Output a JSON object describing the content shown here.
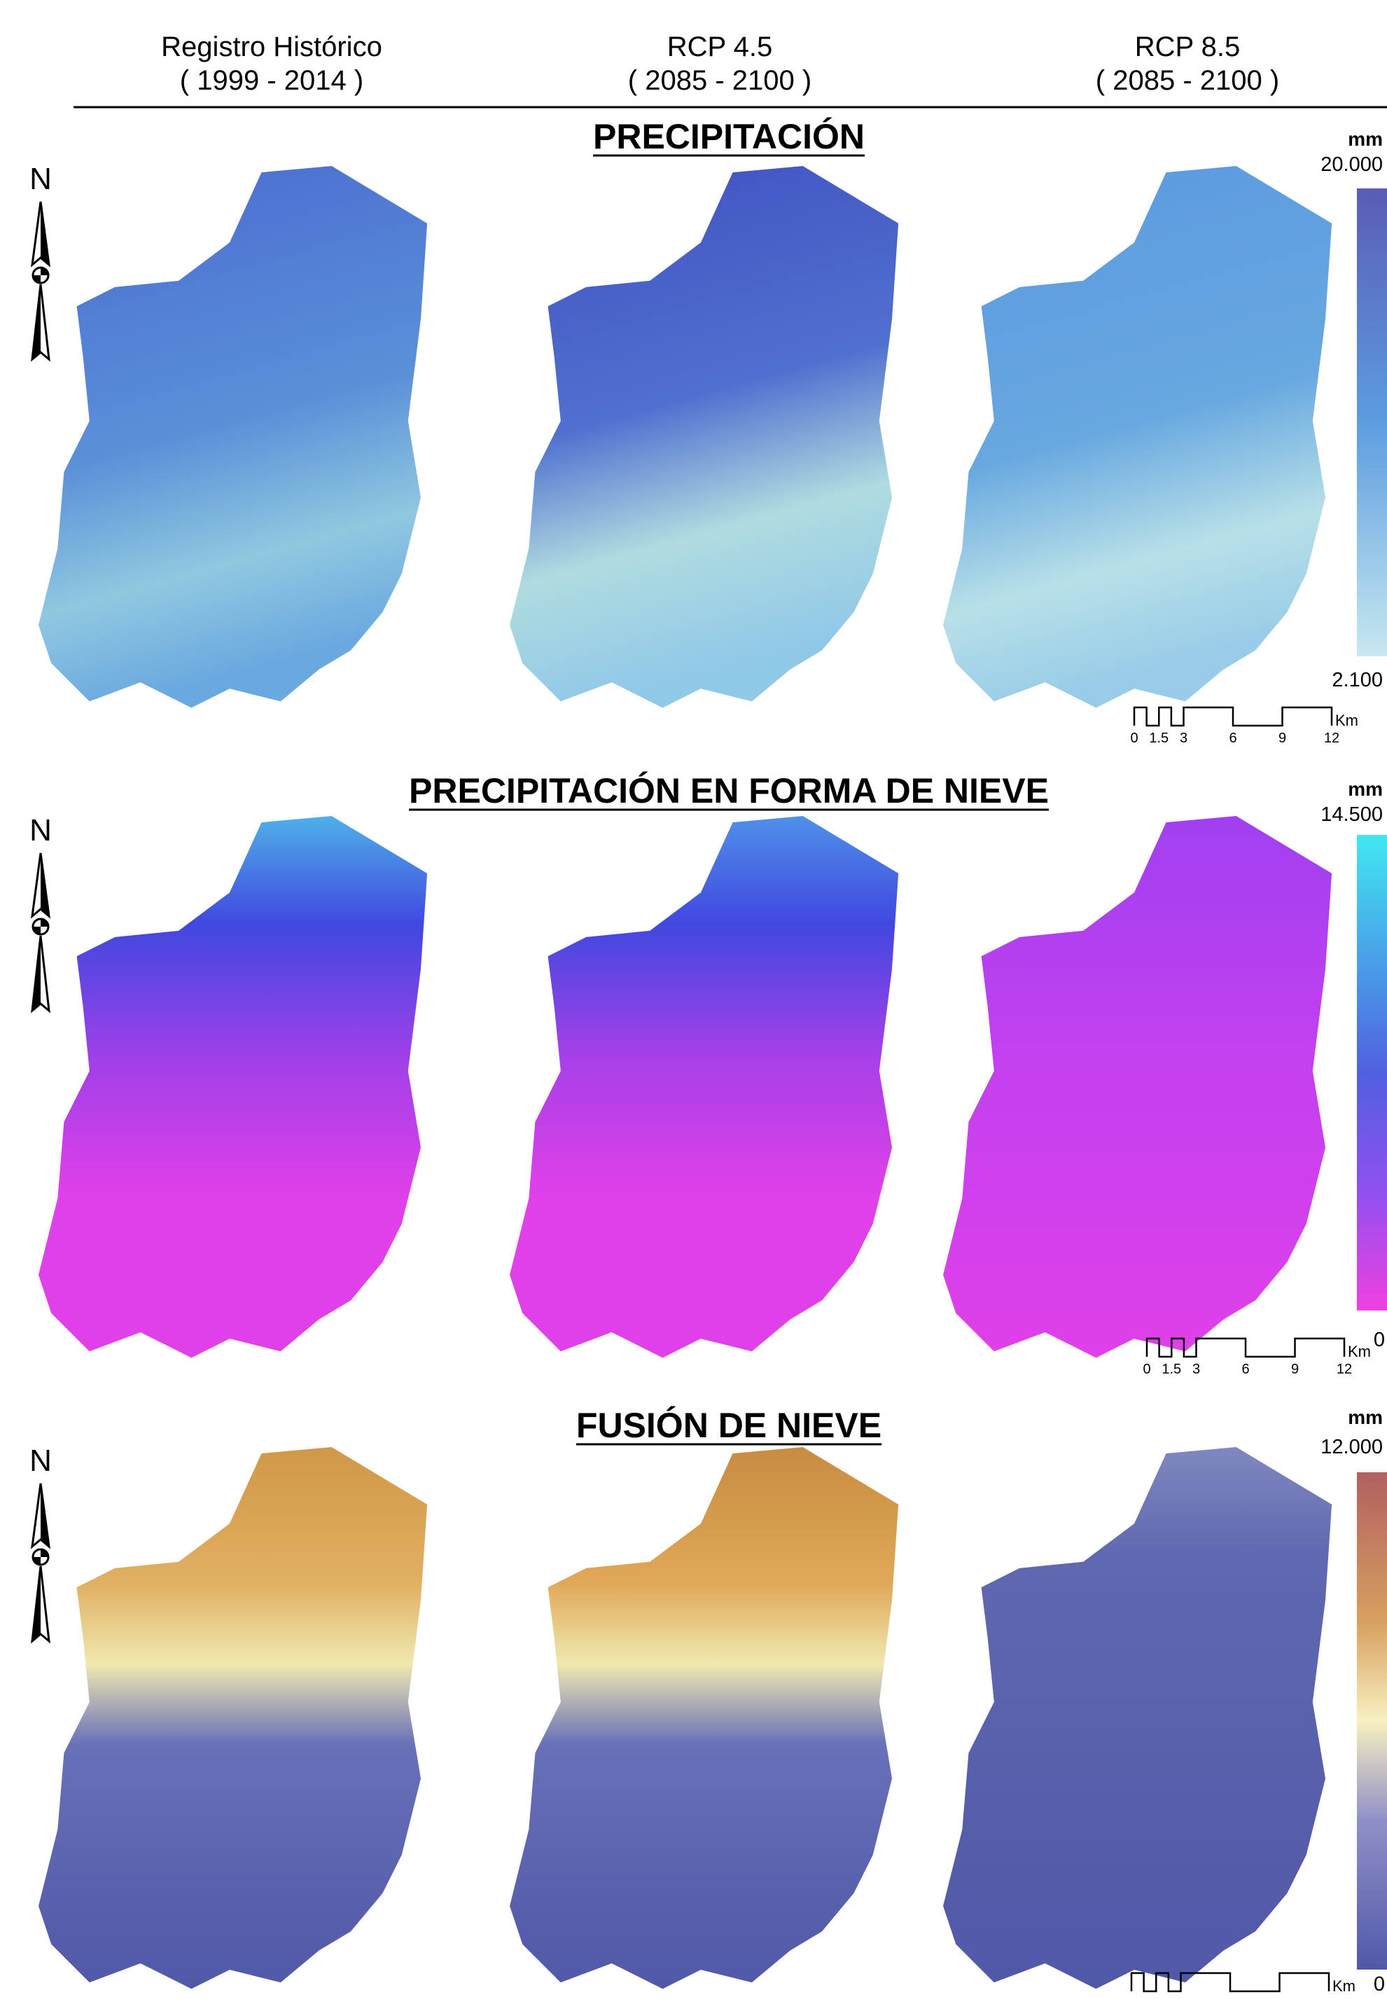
{
  "headers": [
    {
      "title": "Registro Histórico",
      "period": "( 1999 - 2014 )"
    },
    {
      "title": "RCP 4.5",
      "period": "( 2085 - 2100 )"
    },
    {
      "title": "RCP 8.5",
      "period": "( 2085 - 2100 )"
    }
  ],
  "sections": [
    {
      "title": "PRECIPITACIÓN",
      "north": "N",
      "legend": {
        "unit": "mm",
        "max": "20.000",
        "min": "2.100"
      },
      "scale_labels": [
        "0",
        "1.5",
        "3",
        "6",
        "9",
        "12"
      ],
      "scale_unit": "Km"
    },
    {
      "title": "PRECIPITACIÓN EN FORMA DE NIEVE",
      "north": "N",
      "legend": {
        "unit": "mm",
        "max": "14.500",
        "min": "0"
      },
      "scale_labels": [
        "0",
        "1.5",
        "3",
        "6",
        "9",
        "12"
      ],
      "scale_unit": "Km"
    },
    {
      "title": "FUSIÓN DE NIEVE",
      "north": "N",
      "legend": {
        "unit": "mm",
        "max": "12.000",
        "min": "0"
      },
      "scale_labels": [],
      "scale_unit": "Km"
    }
  ]
}
